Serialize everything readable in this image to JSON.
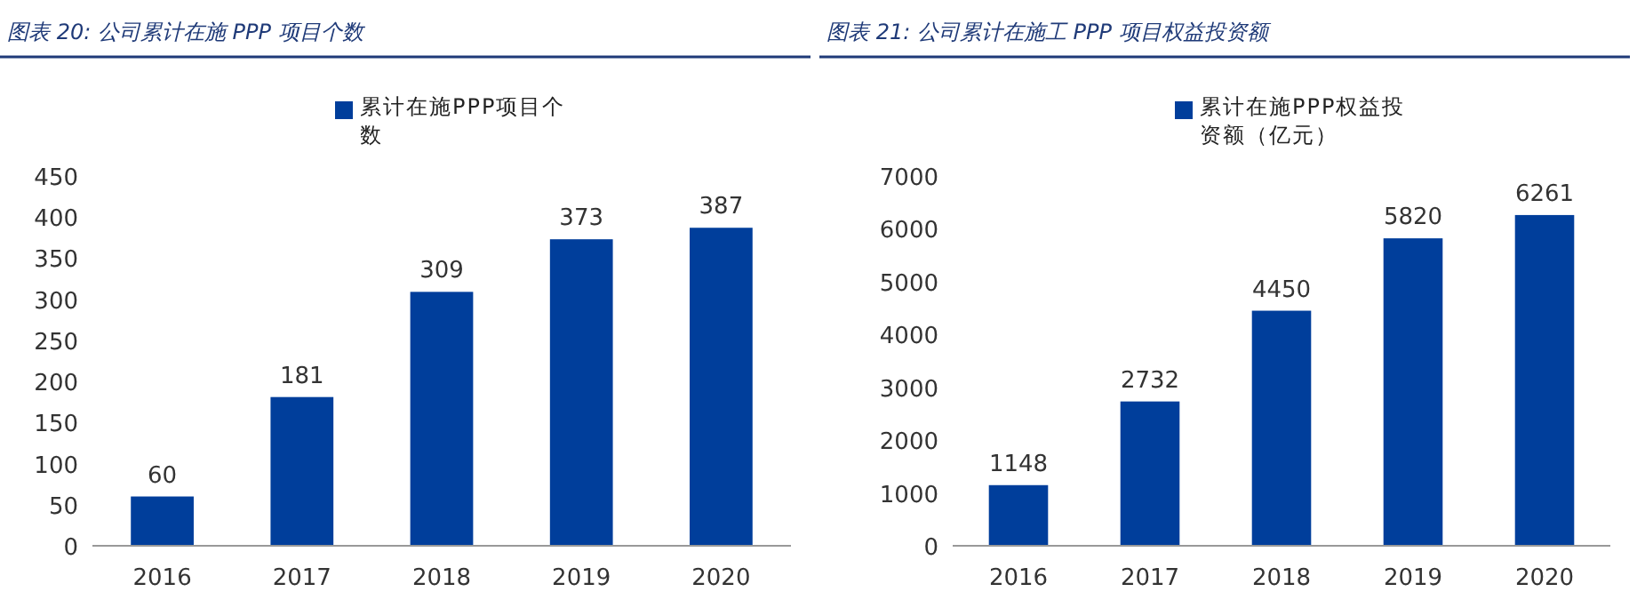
{
  "chart_data": [
    {
      "type": "bar",
      "title": "图表 20: 公司累计在施 PPP 项目个数",
      "categories": [
        "2016",
        "2017",
        "2018",
        "2019",
        "2020"
      ],
      "series": [
        {
          "name": "累计在施PPP项目个数",
          "color": "#003e9b",
          "values": [
            60,
            181,
            309,
            373,
            387
          ]
        }
      ],
      "ylim": [
        0,
        450
      ],
      "yticks": [
        0,
        50,
        100,
        150,
        200,
        250,
        300,
        350,
        400,
        450
      ],
      "data_labels": true,
      "legend": "top",
      "grid": false
    },
    {
      "type": "bar",
      "title": "图表 21: 公司累计在施工 PPP 项目权益投资额",
      "categories": [
        "2016",
        "2017",
        "2018",
        "2019",
        "2020"
      ],
      "series": [
        {
          "name": "累计在施PPP权益投资额（亿元）",
          "color": "#003e9b",
          "values": [
            1148,
            2732,
            4450,
            5820,
            6261
          ]
        }
      ],
      "ylim": [
        0,
        7000
      ],
      "yticks": [
        0,
        1000,
        2000,
        3000,
        4000,
        5000,
        6000,
        7000
      ],
      "data_labels": true,
      "legend": "top",
      "grid": false
    }
  ]
}
